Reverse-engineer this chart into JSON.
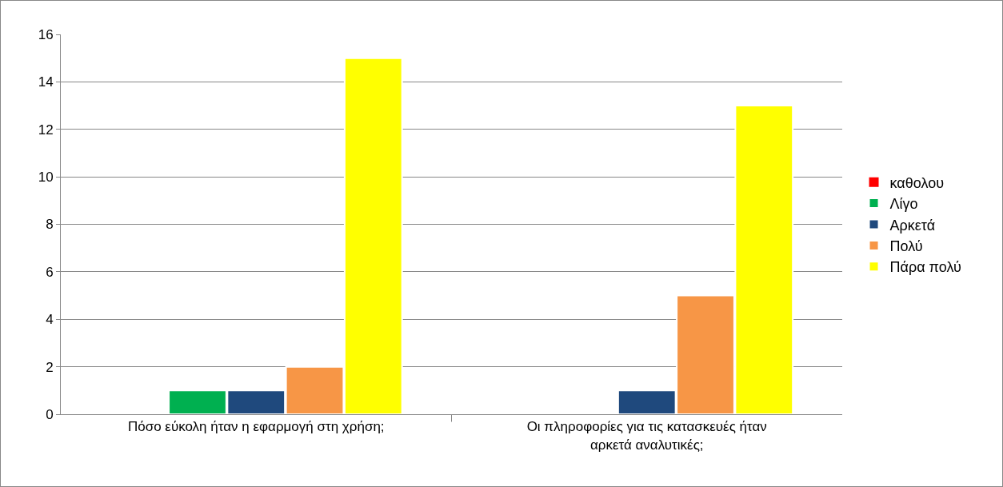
{
  "chart_data": {
    "type": "bar",
    "categories": [
      "Πόσο εύκολη ήταν η εφαρμογή στη χρήση;",
      "Οι πληροφορίες για τις κατασκευές ήταν αρκετά αναλυτικές;"
    ],
    "series": [
      {
        "name": "καθολου",
        "color": "#ff0000",
        "values": [
          0,
          0
        ]
      },
      {
        "name": "Λίγο",
        "color": "#00b050",
        "values": [
          1,
          0
        ]
      },
      {
        "name": "Αρκετά",
        "color": "#1f497d",
        "values": [
          1,
          1
        ]
      },
      {
        "name": "Πολύ",
        "color": "#f79646",
        "values": [
          2,
          5
        ]
      },
      {
        "name": "Πάρα πολύ",
        "color": "#ffff00",
        "values": [
          15,
          13
        ]
      }
    ],
    "ylim": [
      0,
      16
    ],
    "yticks": [
      0,
      2,
      4,
      6,
      8,
      10,
      12,
      14,
      16
    ],
    "grid": "y",
    "legend": "right"
  }
}
